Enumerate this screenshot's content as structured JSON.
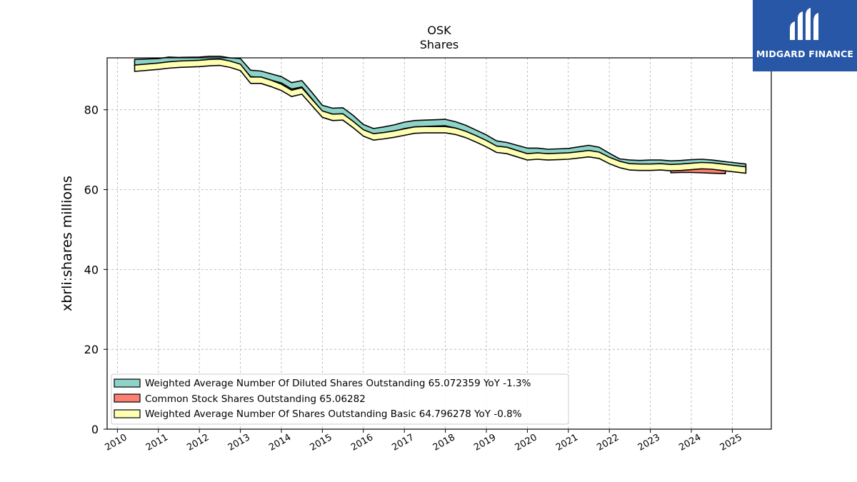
{
  "logo": {
    "text": "MIDGARD FINANCE",
    "background": "#2757a6",
    "icon": "midgard-logo-icon"
  },
  "chart_data": {
    "type": "area",
    "title": "OSK",
    "subtitle": "Shares",
    "xlabel": "",
    "ylabel": "xbrli:shares millions",
    "ylim": [
      0,
      93
    ],
    "xlim": [
      2009.75,
      2025.95
    ],
    "yticks": [
      0,
      20,
      40,
      60,
      80
    ],
    "xticks": [
      "2010",
      "2011",
      "2012",
      "2013",
      "2014",
      "2015",
      "2016",
      "2017",
      "2018",
      "2019",
      "2020",
      "2021",
      "2022",
      "2023",
      "2024",
      "2025"
    ],
    "grid": true,
    "legend_position": "lower-left",
    "series": [
      {
        "name": "Weighted Average Number Of Diluted Shares Outstanding",
        "legend": "Weighted Average Number Of Diluted Shares Outstanding  65.072359 YoY -1.3%",
        "color": "#8dd3c7",
        "x": [
          2010.42,
          2011.0,
          2011.25,
          2011.5,
          2012.0,
          2012.25,
          2012.5,
          2012.75,
          2013.0,
          2013.25,
          2013.5,
          2013.75,
          2014.0,
          2014.25,
          2014.5,
          2014.75,
          2015.0,
          2015.25,
          2015.5,
          2015.75,
          2016.0,
          2016.25,
          2016.5,
          2016.75,
          2017.0,
          2017.25,
          2017.5,
          2017.75,
          2018.0,
          2018.25,
          2018.5,
          2018.75,
          2019.0,
          2019.25,
          2019.5,
          2019.75,
          2020.0,
          2020.25,
          2020.5,
          2020.75,
          2021.0,
          2021.25,
          2021.5,
          2021.75,
          2022.0,
          2022.25,
          2022.5,
          2022.75,
          2023.0,
          2023.25,
          2023.5,
          2023.75,
          2024.0,
          2024.25,
          2024.5,
          2024.75,
          2025.0,
          2025.33
        ],
        "values": [
          91.8,
          92.0,
          92.4,
          92.3,
          92.4,
          92.6,
          92.6,
          92.2,
          92.0,
          89.1,
          88.9,
          88.2,
          87.5,
          86.0,
          86.5,
          83.5,
          80.3,
          79.6,
          79.7,
          77.8,
          75.5,
          74.5,
          74.9,
          75.4,
          76.1,
          76.5,
          76.6,
          76.7,
          76.8,
          76.2,
          75.3,
          74.1,
          72.9,
          71.4,
          71.0,
          70.3,
          69.6,
          69.6,
          69.3,
          69.4,
          69.5,
          69.9,
          70.3,
          69.8,
          68.3,
          66.9,
          66.6,
          66.5,
          66.6,
          66.6,
          66.4,
          66.5,
          66.7,
          66.8,
          66.6,
          66.3,
          66.0,
          65.6
        ]
      },
      {
        "name": "Common Stock Shares Outstanding",
        "legend": "Common Stock Shares Outstanding  65.06282",
        "color": "#fb8072",
        "x": [
          2023.5,
          2023.75,
          2024.0,
          2024.25,
          2024.5,
          2024.83
        ],
        "values": [
          65.0,
          65.1,
          65.1,
          65.0,
          64.9,
          64.8
        ]
      },
      {
        "name": "Weighted Average Number Of Shares Outstanding Basic",
        "legend": "Weighted Average Number Of Shares Outstanding Basic  64.796278 YoY -0.8%",
        "color": "#ffffb3",
        "x": [
          2010.42,
          2011.0,
          2011.25,
          2011.5,
          2012.0,
          2012.25,
          2012.5,
          2012.75,
          2013.0,
          2013.25,
          2013.5,
          2013.75,
          2014.0,
          2014.25,
          2014.5,
          2014.75,
          2015.0,
          2015.25,
          2015.5,
          2015.75,
          2016.0,
          2016.25,
          2016.5,
          2016.75,
          2017.0,
          2017.25,
          2017.5,
          2017.75,
          2018.0,
          2018.25,
          2018.5,
          2018.75,
          2019.0,
          2019.25,
          2019.5,
          2019.75,
          2020.0,
          2020.25,
          2020.5,
          2020.75,
          2021.0,
          2021.25,
          2021.5,
          2021.75,
          2022.0,
          2022.25,
          2022.5,
          2022.75,
          2023.0,
          2023.25,
          2023.5,
          2023.75,
          2024.0,
          2024.25,
          2024.5,
          2024.75,
          2025.0,
          2025.33
        ],
        "values": [
          90.4,
          90.9,
          91.2,
          91.4,
          91.6,
          91.8,
          91.9,
          91.4,
          90.6,
          87.4,
          87.4,
          86.6,
          85.6,
          84.1,
          84.7,
          81.8,
          78.9,
          78.1,
          78.2,
          76.3,
          74.2,
          73.2,
          73.5,
          73.9,
          74.4,
          74.9,
          75.0,
          75.0,
          75.0,
          74.6,
          73.8,
          72.7,
          71.5,
          70.1,
          69.8,
          69.0,
          68.2,
          68.4,
          68.2,
          68.3,
          68.4,
          68.7,
          69.0,
          68.6,
          67.3,
          66.3,
          65.7,
          65.6,
          65.6,
          65.7,
          65.5,
          65.6,
          65.8,
          66.0,
          65.9,
          65.6,
          65.3,
          64.9
        ]
      }
    ]
  }
}
